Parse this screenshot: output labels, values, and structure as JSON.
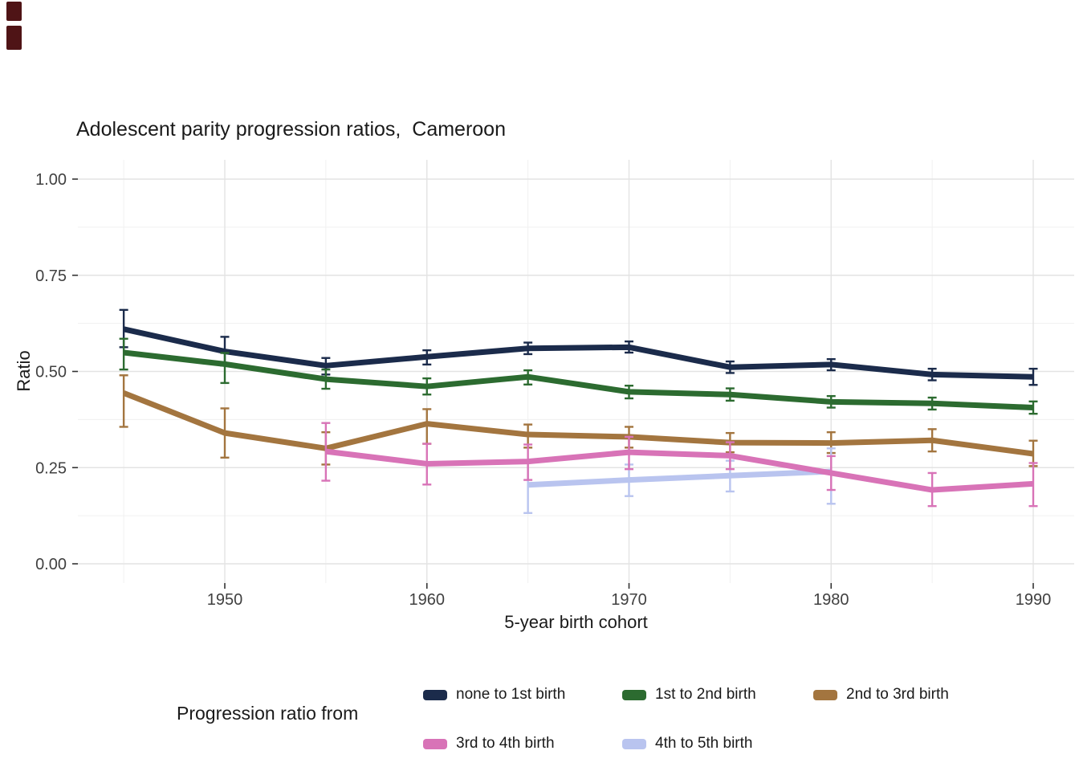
{
  "figure": {
    "title": "Adolescent parity progression ratios,  Cameroon",
    "x_axis_label": "5-year birth cohort",
    "y_axis_label": "Ratio",
    "legend_title": "Progression ratio from"
  },
  "chart_data": {
    "type": "line",
    "title": "Adolescent parity progression ratios,  Cameroon",
    "xlabel": "5-year birth cohort",
    "ylabel": "Ratio",
    "xlim": [
      1942.75,
      1992.25
    ],
    "ylim": [
      0,
      1
    ],
    "x_ticks": [
      1950,
      1960,
      1970,
      1980,
      1990
    ],
    "x_minor_ticks": [
      1945,
      1955,
      1965,
      1975,
      1985
    ],
    "y_ticks": [
      0,
      0.25,
      0.5,
      0.75,
      1
    ],
    "y_tick_labels": [
      "0.00",
      "0.25",
      "0.50",
      "0.75",
      "1.00"
    ],
    "y_minor_ticks": [
      0.125,
      0.375,
      0.625,
      0.875
    ],
    "grid": true,
    "legend_position": "bottom",
    "error_bars": true,
    "style": {
      "grid_major_color": "#e3e3e3",
      "grid_minor_color": "#f0f0f0",
      "axis_tick_color": "#333333",
      "tick_label_color": "#404040",
      "line_width": 7,
      "error_bar_width": 2.4
    },
    "series": [
      {
        "name": "none to 1st birth",
        "color": "#1b2b4b",
        "points": [
          {
            "x": 1945,
            "y": 0.61,
            "lo": 0.563,
            "hi": 0.66
          },
          {
            "x": 1950,
            "y": 0.552,
            "lo": 0.515,
            "hi": 0.59
          },
          {
            "x": 1955,
            "y": 0.515,
            "lo": 0.492,
            "hi": 0.535
          },
          {
            "x": 1960,
            "y": 0.538,
            "lo": 0.518,
            "hi": 0.555
          },
          {
            "x": 1965,
            "y": 0.56,
            "lo": 0.545,
            "hi": 0.575
          },
          {
            "x": 1970,
            "y": 0.563,
            "lo": 0.549,
            "hi": 0.578
          },
          {
            "x": 1975,
            "y": 0.511,
            "lo": 0.496,
            "hi": 0.526
          },
          {
            "x": 1980,
            "y": 0.518,
            "lo": 0.503,
            "hi": 0.532
          },
          {
            "x": 1985,
            "y": 0.492,
            "lo": 0.477,
            "hi": 0.507
          },
          {
            "x": 1990,
            "y": 0.486,
            "lo": 0.465,
            "hi": 0.507
          }
        ]
      },
      {
        "name": "1st to 2nd birth",
        "color": "#2c6b30",
        "points": [
          {
            "x": 1945,
            "y": 0.549,
            "lo": 0.505,
            "hi": 0.585
          },
          {
            "x": 1950,
            "y": 0.519,
            "lo": 0.47,
            "hi": 0.548
          },
          {
            "x": 1955,
            "y": 0.48,
            "lo": 0.455,
            "hi": 0.505
          },
          {
            "x": 1960,
            "y": 0.461,
            "lo": 0.44,
            "hi": 0.482
          },
          {
            "x": 1965,
            "y": 0.486,
            "lo": 0.466,
            "hi": 0.503
          },
          {
            "x": 1970,
            "y": 0.447,
            "lo": 0.43,
            "hi": 0.463
          },
          {
            "x": 1975,
            "y": 0.44,
            "lo": 0.424,
            "hi": 0.456
          },
          {
            "x": 1980,
            "y": 0.421,
            "lo": 0.406,
            "hi": 0.436
          },
          {
            "x": 1985,
            "y": 0.417,
            "lo": 0.401,
            "hi": 0.432
          },
          {
            "x": 1990,
            "y": 0.406,
            "lo": 0.39,
            "hi": 0.422
          }
        ]
      },
      {
        "name": "2nd to 3rd birth",
        "color": "#a3753f",
        "points": [
          {
            "x": 1945,
            "y": 0.444,
            "lo": 0.356,
            "hi": 0.49
          },
          {
            "x": 1950,
            "y": 0.34,
            "lo": 0.276,
            "hi": 0.404
          },
          {
            "x": 1955,
            "y": 0.3,
            "lo": 0.258,
            "hi": 0.342
          },
          {
            "x": 1960,
            "y": 0.364,
            "lo": 0.312,
            "hi": 0.402
          },
          {
            "x": 1965,
            "y": 0.336,
            "lo": 0.302,
            "hi": 0.362
          },
          {
            "x": 1970,
            "y": 0.33,
            "lo": 0.302,
            "hi": 0.356
          },
          {
            "x": 1975,
            "y": 0.315,
            "lo": 0.29,
            "hi": 0.34
          },
          {
            "x": 1980,
            "y": 0.314,
            "lo": 0.288,
            "hi": 0.342
          },
          {
            "x": 1985,
            "y": 0.321,
            "lo": 0.292,
            "hi": 0.35
          },
          {
            "x": 1990,
            "y": 0.286,
            "lo": 0.254,
            "hi": 0.32
          }
        ]
      },
      {
        "name": "3rd to 4th birth",
        "color": "#d873b7",
        "points": [
          {
            "x": 1955,
            "y": 0.292,
            "lo": 0.216,
            "hi": 0.366
          },
          {
            "x": 1960,
            "y": 0.26,
            "lo": 0.206,
            "hi": 0.312
          },
          {
            "x": 1965,
            "y": 0.266,
            "lo": 0.218,
            "hi": 0.31
          },
          {
            "x": 1970,
            "y": 0.29,
            "lo": 0.246,
            "hi": 0.33
          },
          {
            "x": 1975,
            "y": 0.281,
            "lo": 0.246,
            "hi": 0.316
          },
          {
            "x": 1980,
            "y": 0.236,
            "lo": 0.192,
            "hi": 0.28
          },
          {
            "x": 1985,
            "y": 0.192,
            "lo": 0.15,
            "hi": 0.236
          },
          {
            "x": 1990,
            "y": 0.208,
            "lo": 0.15,
            "hi": 0.262
          }
        ]
      },
      {
        "name": "4th to 5th birth",
        "color": "#b9c4ef",
        "points": [
          {
            "x": 1965,
            "y": 0.205,
            "lo": 0.132,
            "hi": 0.27
          },
          {
            "x": 1970,
            "y": 0.218,
            "lo": 0.176,
            "hi": 0.258
          },
          {
            "x": 1975,
            "y": 0.229,
            "lo": 0.188,
            "hi": 0.268
          },
          {
            "x": 1980,
            "y": 0.24,
            "lo": 0.156,
            "hi": 0.3
          }
        ]
      }
    ]
  }
}
